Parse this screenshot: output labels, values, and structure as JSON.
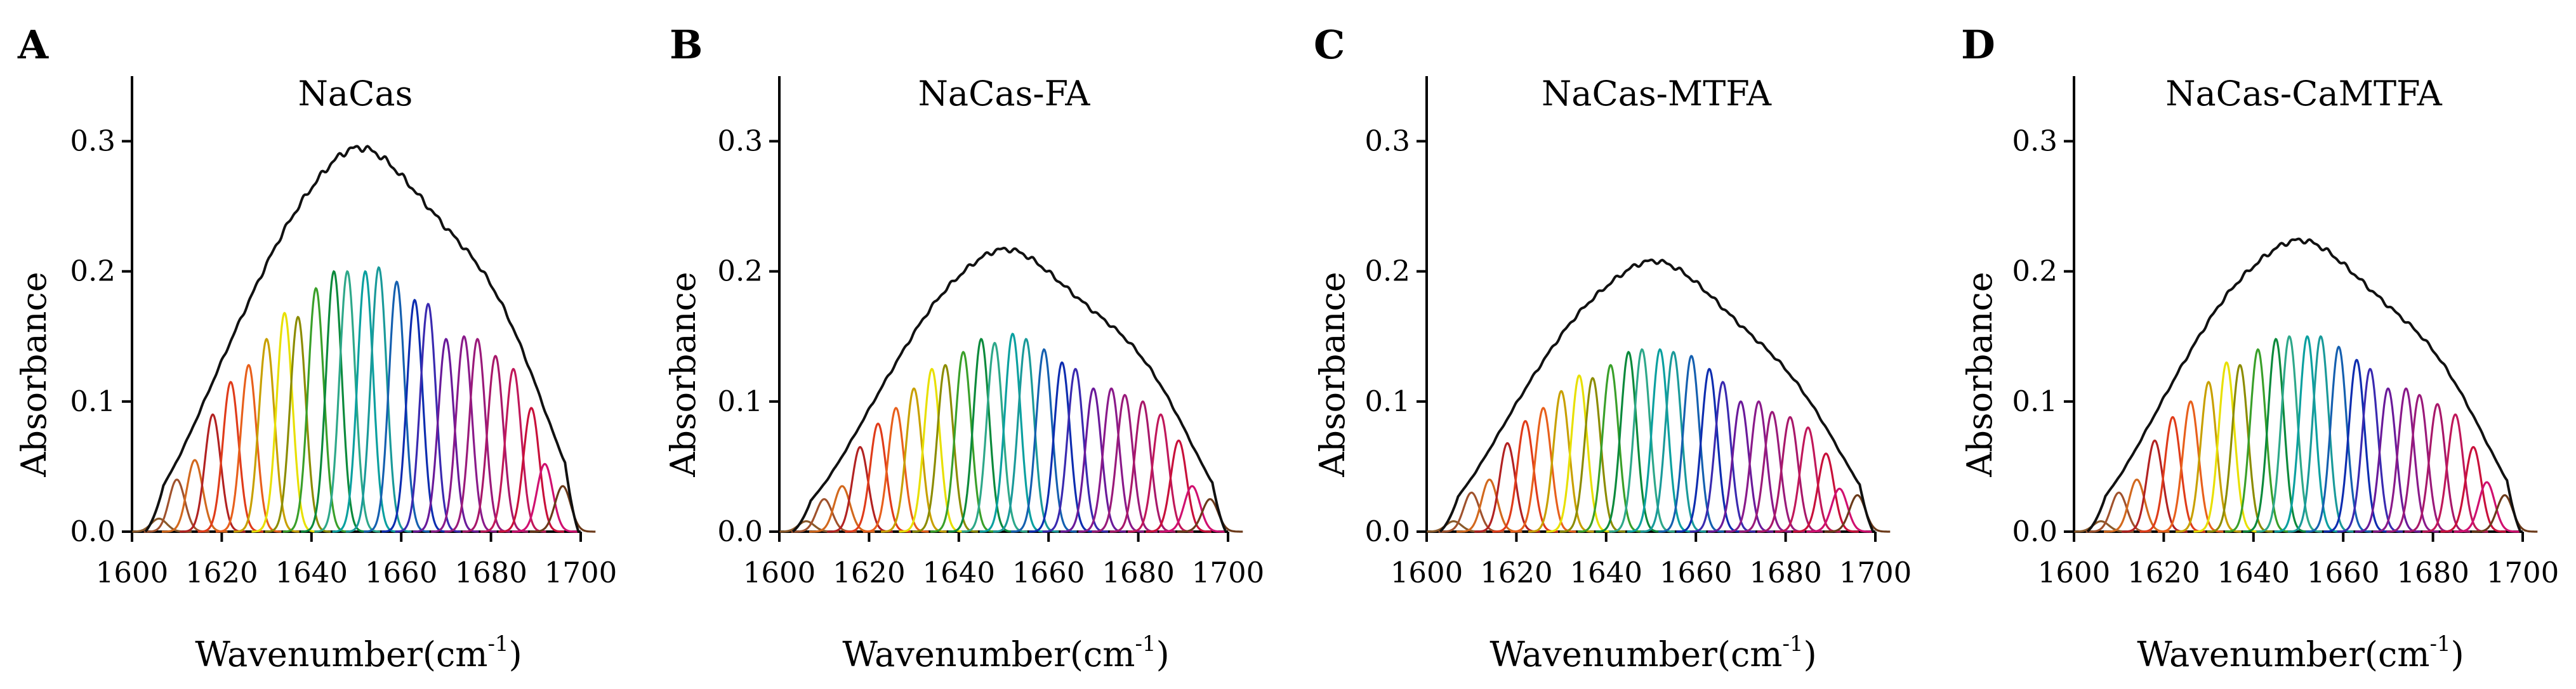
{
  "chart_data": [
    {
      "type": "line",
      "panel": "A",
      "title": "NaCas",
      "xlabel": "Wavenumber(cm",
      "xlabel_sup": "-1",
      "xlabel_close": ")",
      "ylabel": "Absorbance",
      "xlim": [
        1600,
        1700
      ],
      "ylim": [
        0,
        0.35
      ],
      "xticks": [
        "1600",
        "1620",
        "1640",
        "1660",
        "1680",
        "1700"
      ],
      "yticks": [
        "0.0",
        "0.1",
        "0.2",
        "0.3"
      ],
      "envelope_peak": 0.295,
      "components": {
        "centers": [
          1606,
          1610,
          1614,
          1618,
          1622,
          1626,
          1630,
          1634,
          1637,
          1641,
          1645,
          1648,
          1652,
          1655,
          1659,
          1663,
          1666,
          1670,
          1674,
          1677,
          1681,
          1685,
          1689,
          1692,
          1696
        ],
        "heights": [
          0.01,
          0.04,
          0.055,
          0.09,
          0.115,
          0.128,
          0.148,
          0.168,
          0.165,
          0.187,
          0.2,
          0.2,
          0.2,
          0.203,
          0.192,
          0.178,
          0.175,
          0.148,
          0.15,
          0.148,
          0.135,
          0.125,
          0.095,
          0.052,
          0.035
        ]
      }
    },
    {
      "type": "line",
      "panel": "B",
      "title": "NaCas-FA",
      "xlabel": "Wavenumber(cm",
      "xlabel_sup": "-1",
      "xlabel_close": ")",
      "ylabel": "Absorbance",
      "xlim": [
        1600,
        1700
      ],
      "ylim": [
        0,
        0.35
      ],
      "xticks": [
        "1600",
        "1620",
        "1640",
        "1660",
        "1680",
        "1700"
      ],
      "yticks": [
        "0.0",
        "0.1",
        "0.2",
        "0.3"
      ],
      "envelope_peak": 0.217,
      "components": {
        "centers": [
          1606,
          1610,
          1614,
          1618,
          1622,
          1626,
          1630,
          1634,
          1637,
          1641,
          1645,
          1648,
          1652,
          1655,
          1659,
          1663,
          1666,
          1670,
          1674,
          1677,
          1681,
          1685,
          1689,
          1692,
          1696
        ],
        "heights": [
          0.008,
          0.025,
          0.035,
          0.065,
          0.083,
          0.095,
          0.11,
          0.125,
          0.128,
          0.138,
          0.148,
          0.145,
          0.152,
          0.148,
          0.14,
          0.13,
          0.125,
          0.11,
          0.11,
          0.105,
          0.1,
          0.09,
          0.07,
          0.035,
          0.025
        ]
      }
    },
    {
      "type": "line",
      "panel": "C",
      "title": "NaCas-MTFA",
      "xlabel": "Wavenumber(cm",
      "xlabel_sup": "-1",
      "xlabel_close": ")",
      "ylabel": "Absorbance",
      "xlim": [
        1600,
        1700
      ],
      "ylim": [
        0,
        0.35
      ],
      "xticks": [
        "1600",
        "1620",
        "1640",
        "1660",
        "1680",
        "1700"
      ],
      "yticks": [
        "0.0",
        "0.1",
        "0.2",
        "0.3"
      ],
      "envelope_peak": 0.208,
      "components": {
        "centers": [
          1606,
          1610,
          1614,
          1618,
          1622,
          1626,
          1630,
          1634,
          1637,
          1641,
          1645,
          1648,
          1652,
          1655,
          1659,
          1663,
          1666,
          1670,
          1674,
          1677,
          1681,
          1685,
          1689,
          1692,
          1696
        ],
        "heights": [
          0.008,
          0.03,
          0.04,
          0.068,
          0.085,
          0.095,
          0.108,
          0.12,
          0.118,
          0.128,
          0.138,
          0.14,
          0.14,
          0.138,
          0.135,
          0.125,
          0.115,
          0.1,
          0.1,
          0.092,
          0.088,
          0.08,
          0.06,
          0.033,
          0.028
        ]
      }
    },
    {
      "type": "line",
      "panel": "D",
      "title": "NaCas-CaMTFA",
      "xlabel": "Wavenumber(cm",
      "xlabel_sup": "-1",
      "xlabel_close": ")",
      "ylabel": "Absorbance",
      "xlim": [
        1600,
        1700
      ],
      "ylim": [
        0,
        0.35
      ],
      "xticks": [
        "1600",
        "1620",
        "1640",
        "1660",
        "1680",
        "1700"
      ],
      "yticks": [
        "0.0",
        "0.1",
        "0.2",
        "0.3"
      ],
      "envelope_peak": 0.224,
      "components": {
        "centers": [
          1606,
          1610,
          1614,
          1618,
          1622,
          1626,
          1630,
          1634,
          1637,
          1641,
          1645,
          1648,
          1652,
          1655,
          1659,
          1663,
          1666,
          1670,
          1674,
          1677,
          1681,
          1685,
          1689,
          1692,
          1696
        ],
        "heights": [
          0.008,
          0.03,
          0.04,
          0.07,
          0.088,
          0.1,
          0.115,
          0.13,
          0.128,
          0.14,
          0.148,
          0.15,
          0.15,
          0.15,
          0.142,
          0.132,
          0.125,
          0.11,
          0.11,
          0.105,
          0.098,
          0.09,
          0.065,
          0.038,
          0.028
        ]
      }
    }
  ],
  "colors": {
    "envelope": "#111111",
    "components": [
      "#8a5a2b",
      "#a0522d",
      "#d2691e",
      "#b22222",
      "#e03c1a",
      "#e8601c",
      "#c8a000",
      "#e8e000",
      "#8c8c00",
      "#3aa02a",
      "#0b8a3c",
      "#2ea88a",
      "#0aa0a0",
      "#1a9a9a",
      "#1560b0",
      "#0d2db0",
      "#3a2ab0",
      "#6a1a9a",
      "#8a1a8a",
      "#9a1a7a",
      "#a8186a",
      "#c0185a",
      "#c8103a",
      "#d01070",
      "#6b3a1a"
    ]
  }
}
